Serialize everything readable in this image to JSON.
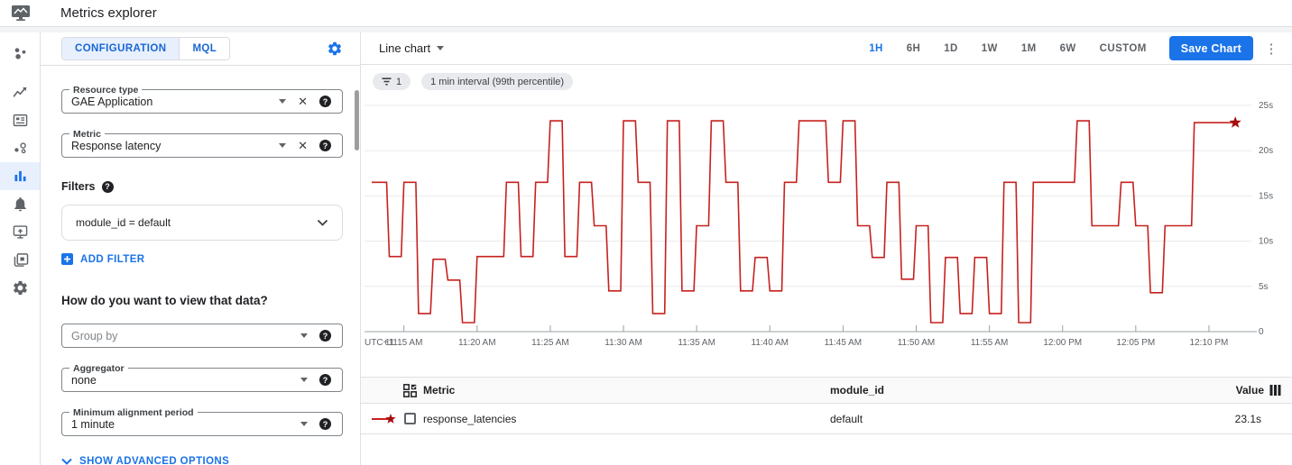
{
  "app": {
    "title": "Metrics explorer"
  },
  "sidebar": {
    "active": "metrics-explorer",
    "icons": [
      {
        "name": "monitoring-overview"
      },
      {
        "name": "metrics"
      },
      {
        "name": "dashboards"
      },
      {
        "name": "services"
      },
      {
        "name": "metrics-explorer"
      },
      {
        "name": "alerting"
      },
      {
        "name": "uptime-checks"
      },
      {
        "name": "groups"
      },
      {
        "name": "settings"
      }
    ]
  },
  "config_panel": {
    "tabs": [
      {
        "label": "CONFIGURATION",
        "active": true
      },
      {
        "label": "MQL",
        "active": false
      }
    ],
    "resource_type": {
      "label": "Resource type",
      "value": "GAE Application"
    },
    "metric": {
      "label": "Metric",
      "value": "Response latency"
    },
    "filters_label": "Filters",
    "filter_value": "module_id = default",
    "add_filter_label": "ADD FILTER",
    "view_question": "How do you want to view that data?",
    "group_by": {
      "placeholder": "Group by"
    },
    "aggregator": {
      "label": "Aggregator",
      "value": "none"
    },
    "min_alignment": {
      "label": "Minimum alignment period",
      "value": "1 minute"
    },
    "show_advanced_label": "SHOW ADVANCED OPTIONS"
  },
  "toolbar": {
    "chart_type": "Line chart",
    "ranges": [
      "1H",
      "6H",
      "1D",
      "1W",
      "1M",
      "6W",
      "CUSTOM"
    ],
    "active_range": "1H",
    "save_label": "Save Chart"
  },
  "chips": {
    "filter_count": "1",
    "interval": "1 min interval (99th percentile)"
  },
  "chart_data": {
    "type": "line",
    "step_style": true,
    "title": "",
    "xlabel": "",
    "ylabel": "",
    "grid": true,
    "timezone_label": "UTC+11",
    "x_unit": "minutes after 11:00 AM",
    "x_range": [
      12.8,
      72.9
    ],
    "y_range": [
      0,
      25
    ],
    "y_ticks": [
      0,
      5,
      10,
      15,
      20,
      25
    ],
    "y_tick_labels": [
      "0",
      "5s",
      "10s",
      "15s",
      "20s",
      "25s"
    ],
    "x_ticks": [
      15,
      20,
      25,
      30,
      35,
      40,
      45,
      50,
      55,
      60,
      65,
      70
    ],
    "x_tick_labels": [
      "11:15 AM",
      "11:20 AM",
      "11:25 AM",
      "11:30 AM",
      "11:35 AM",
      "11:40 AM",
      "11:45 AM",
      "11:50 AM",
      "11:55 AM",
      "12:00 PM",
      "12:05 PM",
      "12:10 PM"
    ],
    "end_marker": "star",
    "series": [
      {
        "name": "response_latencies",
        "color": "#c5221f",
        "points": [
          [
            12.8,
            16.5
          ],
          [
            14,
            8.3
          ],
          [
            15,
            16.5
          ],
          [
            16,
            2
          ],
          [
            17,
            8
          ],
          [
            18,
            5.7
          ],
          [
            19,
            1
          ],
          [
            20,
            8.3
          ],
          [
            22,
            16.5
          ],
          [
            23,
            8.3
          ],
          [
            24,
            16.5
          ],
          [
            25,
            23.3
          ],
          [
            26,
            8.3
          ],
          [
            27,
            16.5
          ],
          [
            28,
            11.7
          ],
          [
            29,
            4.5
          ],
          [
            30,
            23.3
          ],
          [
            31,
            16.5
          ],
          [
            32,
            2
          ],
          [
            33,
            23.3
          ],
          [
            34,
            4.5
          ],
          [
            35,
            11.7
          ],
          [
            36,
            23.3
          ],
          [
            37,
            16.5
          ],
          [
            38,
            4.5
          ],
          [
            39,
            8.2
          ],
          [
            40,
            4.5
          ],
          [
            41,
            16.5
          ],
          [
            42,
            23.3
          ],
          [
            44,
            16.5
          ],
          [
            45,
            23.3
          ],
          [
            46,
            11.7
          ],
          [
            47,
            8.2
          ],
          [
            48,
            16.5
          ],
          [
            49,
            5.8
          ],
          [
            50,
            11.7
          ],
          [
            51,
            1
          ],
          [
            52,
            8.2
          ],
          [
            53,
            2
          ],
          [
            54,
            8.2
          ],
          [
            55,
            2
          ],
          [
            56,
            16.5
          ],
          [
            57,
            1
          ],
          [
            58,
            16.5
          ],
          [
            61,
            23.3
          ],
          [
            62,
            11.7
          ],
          [
            64,
            16.5
          ],
          [
            65,
            11.7
          ],
          [
            66,
            4.3
          ],
          [
            67,
            11.7
          ],
          [
            69,
            23.1
          ],
          [
            71.8,
            23.1
          ]
        ]
      }
    ]
  },
  "table": {
    "headers": [
      "Metric",
      "module_id",
      "Value"
    ],
    "rows": [
      {
        "metric": "response_latencies",
        "module_id": "default",
        "value": "23.1s",
        "checked": false
      }
    ]
  },
  "colors": {
    "accent": "#1a73e8",
    "line": "#c5221f",
    "star": "#a50e0e"
  }
}
